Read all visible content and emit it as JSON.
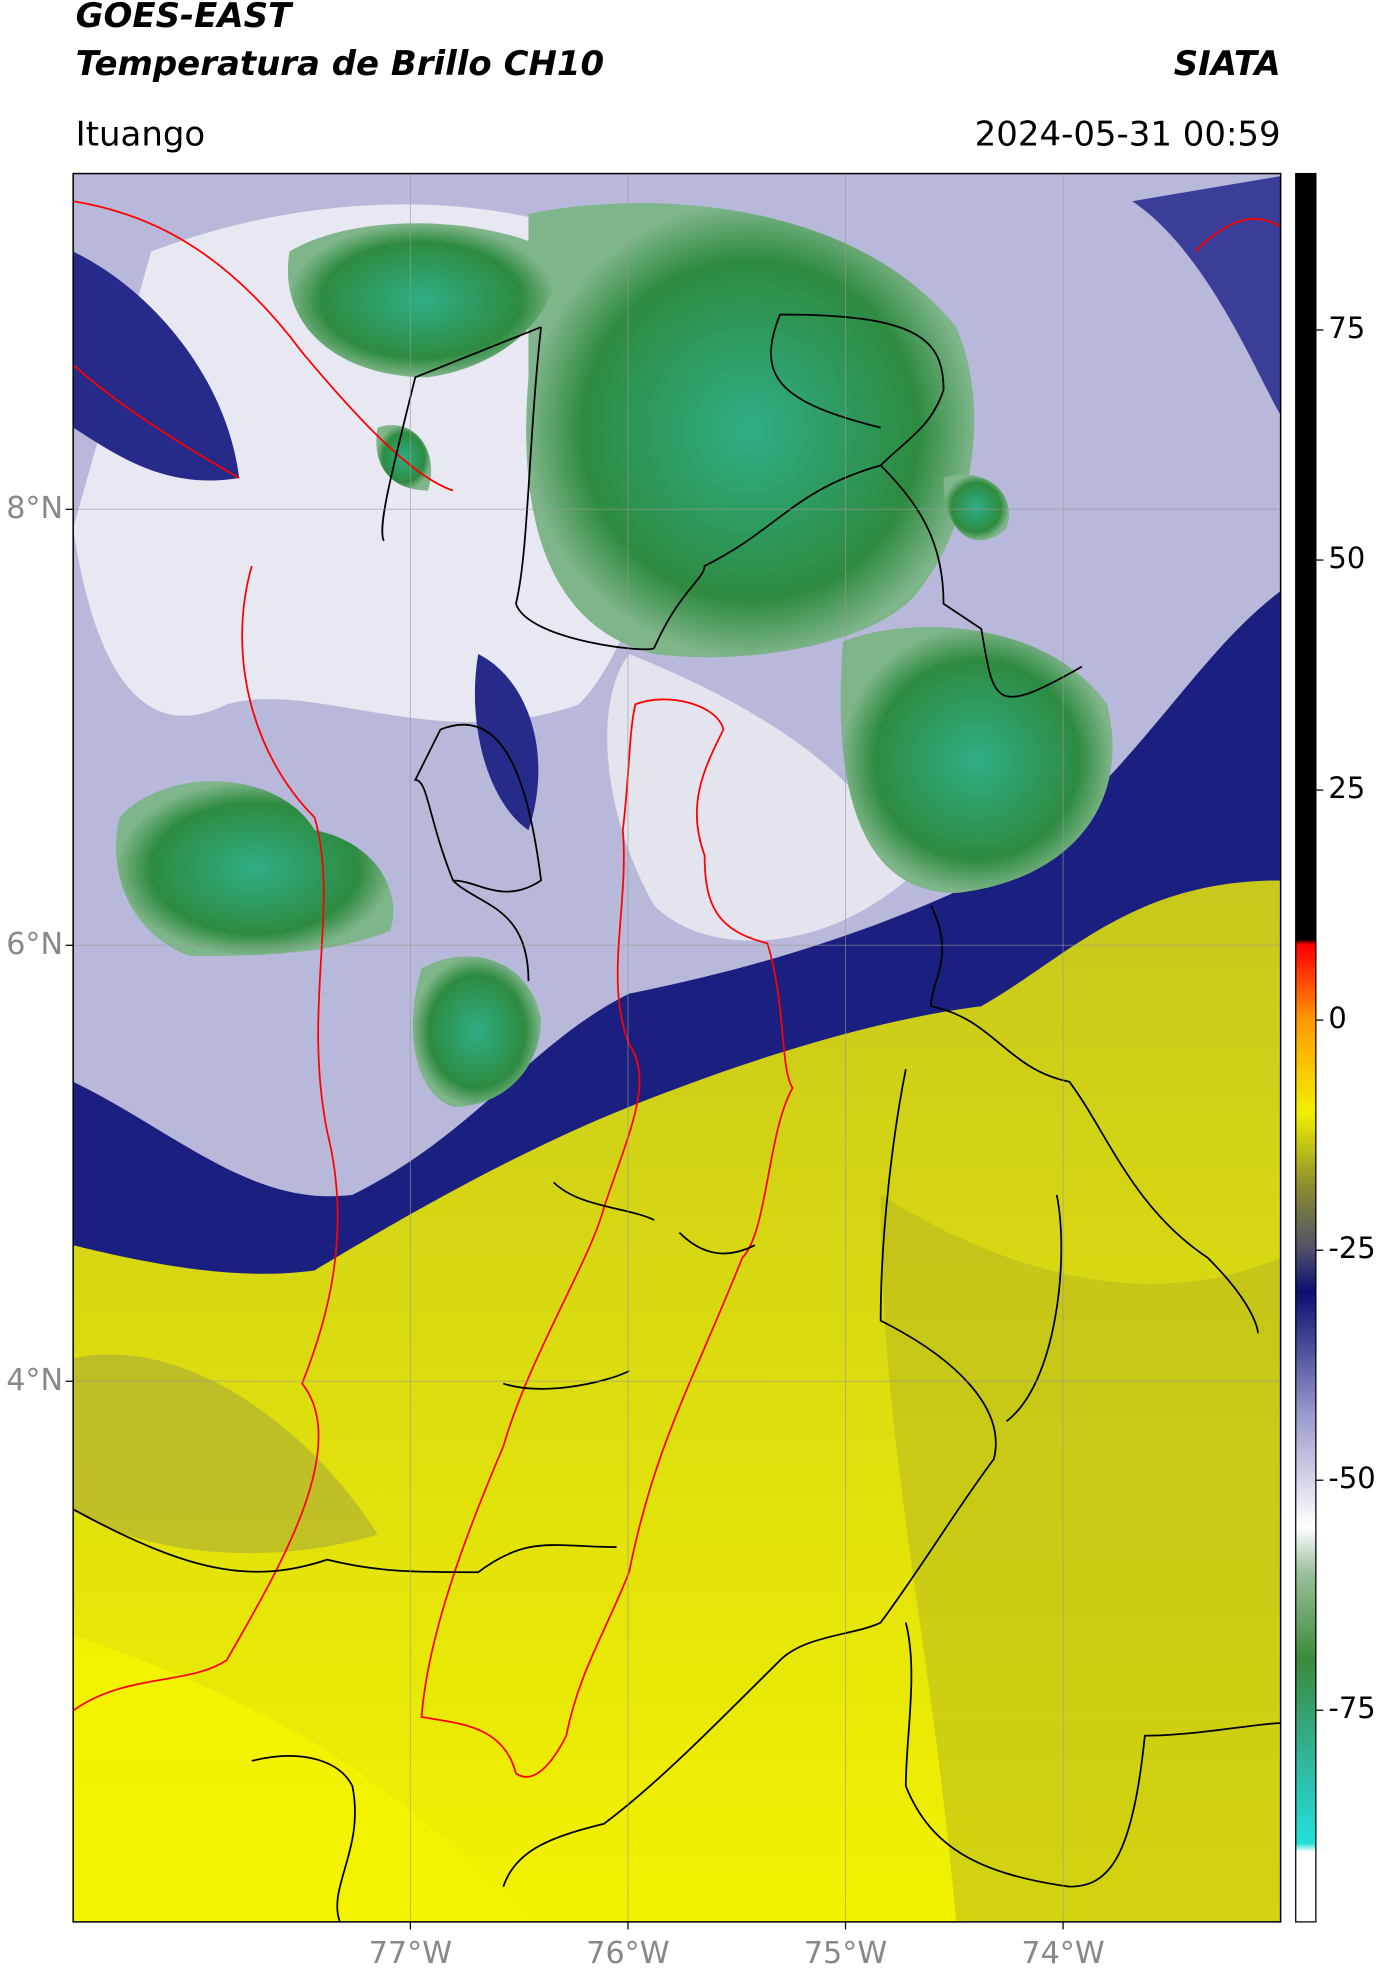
{
  "header": {
    "title": "GOES-EAST",
    "subtitle": "Temperatura de Brillo CH10",
    "organization": "SIATA",
    "location": "Ituango",
    "datetime": "2024-05-31 00:59"
  },
  "map": {
    "lon_range": [
      -78.55,
      -73.0
    ],
    "lat_range": [
      1.52,
      9.54
    ],
    "lon_ticks": [
      {
        "value": -77,
        "label": "77°W"
      },
      {
        "value": -76,
        "label": "76°W"
      },
      {
        "value": -75,
        "label": "75°W"
      },
      {
        "value": -74,
        "label": "74°W"
      }
    ],
    "lat_ticks": [
      {
        "value": 8,
        "label": "8°N"
      },
      {
        "value": 6,
        "label": "6°N"
      },
      {
        "value": 4,
        "label": "4°N"
      }
    ],
    "grid": true
  },
  "colorbar": {
    "range": [
      -98,
      92
    ],
    "ticks": [
      75,
      50,
      25,
      0,
      -25,
      -50,
      -75
    ]
  }
}
